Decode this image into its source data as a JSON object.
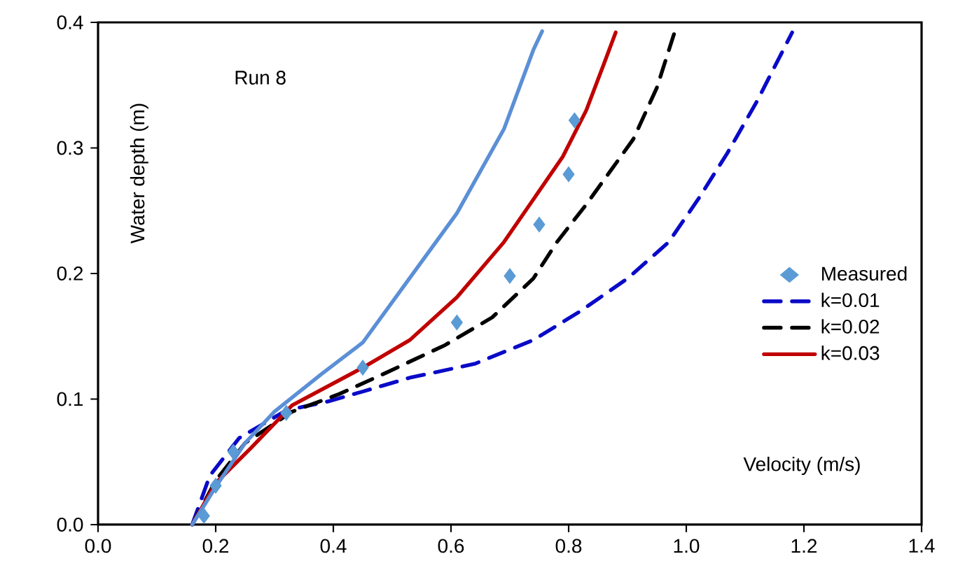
{
  "chart_data": {
    "type": "line",
    "xlabel": "Velocity (m/s)",
    "ylabel": "Water depth (m)",
    "annotations": [
      "Run 8"
    ],
    "xlim": [
      0,
      1.4
    ],
    "ylim": [
      0,
      0.4
    ],
    "xticks": [
      {
        "value": 0,
        "label": "0.0"
      },
      {
        "value": 0.2,
        "label": "0.2"
      },
      {
        "value": 0.4,
        "label": "0.4"
      },
      {
        "value": 0.6,
        "label": "0.6"
      },
      {
        "value": 0.8,
        "label": "0.8"
      },
      {
        "value": 1.0,
        "label": "1.0"
      },
      {
        "value": 1.2,
        "label": "1.2"
      },
      {
        "value": 1.4,
        "label": "1.4"
      }
    ],
    "yticks": [
      {
        "value": 0,
        "label": "0.0"
      },
      {
        "value": 0.1,
        "label": "0.1"
      },
      {
        "value": 0.2,
        "label": "0.2"
      },
      {
        "value": 0.3,
        "label": "0.3"
      },
      {
        "value": 0.4,
        "label": "0.4"
      }
    ],
    "grid": false,
    "legend": "right",
    "series": [
      {
        "name": "Measured",
        "type": "scatter",
        "marker": "diamond",
        "color": "#5b9bd5",
        "x": [
          0.18,
          0.2,
          0.23,
          0.32,
          0.45,
          0.61,
          0.7,
          0.75,
          0.8,
          0.81
        ],
        "values": [
          0.007,
          0.031,
          0.058,
          0.089,
          0.125,
          0.161,
          0.198,
          0.239,
          0.279,
          0.322
        ]
      },
      {
        "name": "k=0.01",
        "line_style": "dashed",
        "color": "#0a0ac8",
        "x": [
          0.16,
          0.19,
          0.24,
          0.32,
          0.39,
          0.45,
          0.53,
          0.64,
          0.74,
          0.82,
          0.9,
          0.97,
          1.02,
          1.07,
          1.12,
          1.18
        ],
        "values": [
          0.0,
          0.039,
          0.069,
          0.091,
          0.098,
          0.106,
          0.117,
          0.128,
          0.147,
          0.17,
          0.196,
          0.225,
          0.259,
          0.296,
          0.337,
          0.392
        ]
      },
      {
        "name": "k=0.02",
        "line_style": "dashed",
        "color": "#000000",
        "x": [
          0.16,
          0.2,
          0.25,
          0.33,
          0.41,
          0.49,
          0.59,
          0.67,
          0.74,
          0.78,
          0.83,
          0.87,
          0.91,
          0.95,
          0.98
        ],
        "values": [
          0.0,
          0.035,
          0.065,
          0.09,
          0.104,
          0.121,
          0.143,
          0.165,
          0.196,
          0.225,
          0.255,
          0.281,
          0.307,
          0.348,
          0.392
        ]
      },
      {
        "name": "k=0.03",
        "line_style": "solid",
        "color": "#c00000",
        "x": [
          0.16,
          0.2,
          0.26,
          0.33,
          0.45,
          0.53,
          0.61,
          0.69,
          0.74,
          0.79,
          0.83,
          0.86,
          0.88
        ],
        "values": [
          0.0,
          0.033,
          0.061,
          0.095,
          0.125,
          0.147,
          0.181,
          0.225,
          0.259,
          0.293,
          0.33,
          0.367,
          0.392
        ]
      },
      {
        "line_style": "solid",
        "color": "#5b8fd6",
        "x": [
          0.16,
          0.2,
          0.25,
          0.3,
          0.38,
          0.45,
          0.52,
          0.61,
          0.69,
          0.74,
          0.755
        ],
        "values": [
          0.0,
          0.03,
          0.065,
          0.09,
          0.12,
          0.145,
          0.19,
          0.248,
          0.315,
          0.378,
          0.393
        ]
      }
    ]
  }
}
